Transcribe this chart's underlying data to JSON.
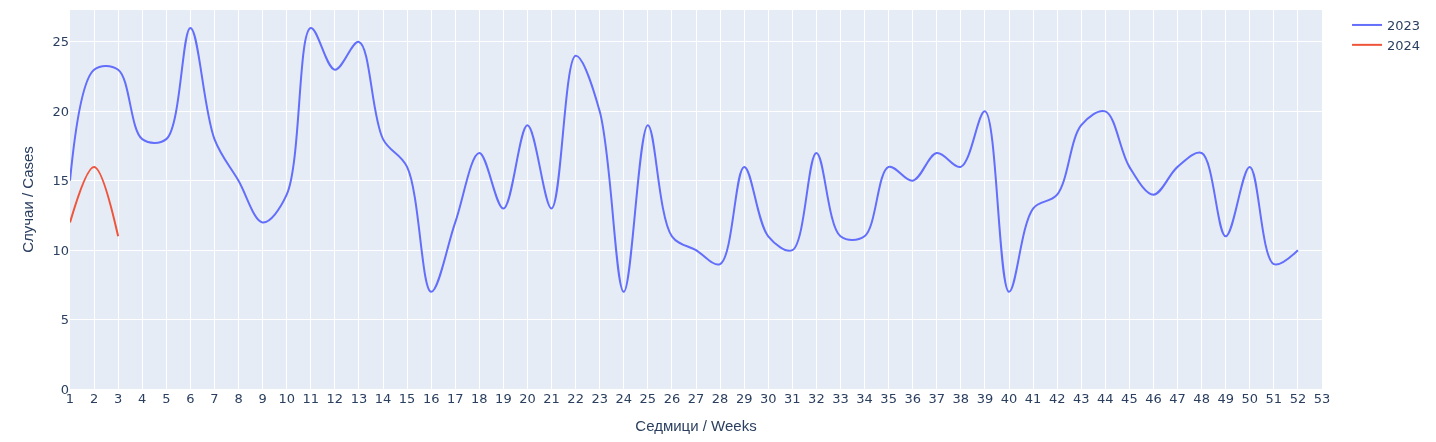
{
  "chart_data": {
    "type": "line",
    "xlabel": "Седмици / Weeks",
    "ylabel": "Случаи / Cases",
    "x": [
      1,
      2,
      3,
      4,
      5,
      6,
      7,
      8,
      9,
      10,
      11,
      12,
      13,
      14,
      15,
      16,
      17,
      18,
      19,
      20,
      21,
      22,
      23,
      24,
      25,
      26,
      27,
      28,
      29,
      30,
      31,
      32,
      33,
      34,
      35,
      36,
      37,
      38,
      39,
      40,
      41,
      42,
      43,
      44,
      45,
      46,
      47,
      48,
      49,
      50,
      51,
      52
    ],
    "series": [
      {
        "name": "2023",
        "color": "#636efa",
        "values": [
          15,
          23,
          23,
          18,
          18,
          26,
          18,
          15,
          12,
          14,
          26,
          23,
          25,
          18,
          16,
          7,
          12,
          17,
          13,
          19,
          13,
          24,
          20,
          7,
          19,
          11,
          10,
          9,
          16,
          11,
          10,
          17,
          11,
          11,
          16,
          15,
          17,
          16,
          20,
          7,
          13,
          14,
          19,
          20,
          16,
          14,
          16,
          17,
          11,
          16,
          9,
          10
        ]
      },
      {
        "name": "2024",
        "color": "#ef553b",
        "x": [
          1,
          2,
          3
        ],
        "values": [
          12,
          16,
          11
        ]
      }
    ],
    "xlim": [
      1,
      53
    ],
    "xticks": [
      1,
      2,
      3,
      4,
      5,
      6,
      7,
      8,
      9,
      10,
      11,
      12,
      13,
      14,
      15,
      16,
      17,
      18,
      19,
      20,
      21,
      22,
      23,
      24,
      25,
      26,
      27,
      28,
      29,
      30,
      31,
      32,
      33,
      34,
      35,
      36,
      37,
      38,
      39,
      40,
      41,
      42,
      43,
      44,
      45,
      46,
      47,
      48,
      49,
      50,
      51,
      52,
      53
    ],
    "ylim": [
      0,
      27.3
    ],
    "yticks": [
      0,
      5,
      10,
      15,
      20,
      25
    ],
    "grid": true,
    "legend": "top right",
    "line_style": "solid",
    "marker": "none"
  }
}
